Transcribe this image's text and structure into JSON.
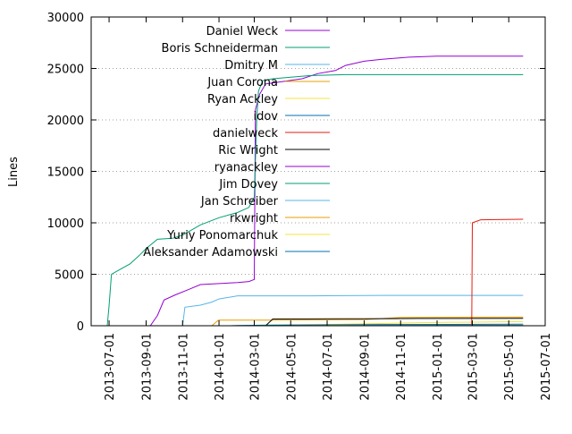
{
  "chart_data": {
    "type": "line",
    "title": "",
    "xlabel": "",
    "ylabel": "Lines",
    "ylim": [
      0,
      30000
    ],
    "xlim": [
      "2013-06-01",
      "2015-07-01"
    ],
    "y_ticks": [
      0,
      5000,
      10000,
      15000,
      20000,
      25000,
      30000
    ],
    "y_tick_labels": [
      "0",
      "5000",
      "10000",
      "15000",
      "20000",
      "25000",
      "30000"
    ],
    "x_ticks": [
      "2013-07-01",
      "2013-09-01",
      "2013-11-01",
      "2014-01-01",
      "2014-03-01",
      "2014-05-01",
      "2014-07-01",
      "2014-09-01",
      "2014-11-01",
      "2015-01-01",
      "2015-03-01",
      "2015-05-01",
      "2015-07-01"
    ],
    "grid": "horizontal dotted",
    "legend_position": "top-right",
    "series": [
      {
        "name": "Daniel Weck",
        "color": "#9400d3",
        "x": [
          "2013-08-25",
          "2013-09-08",
          "2013-09-20",
          "2013-10-01",
          "2013-10-20",
          "2013-11-10",
          "2013-12-01",
          "2014-01-01",
          "2014-02-01",
          "2014-02-20",
          "2014-03-01",
          "2014-03-03",
          "2014-03-10",
          "2014-03-20",
          "2014-04-15",
          "2014-05-20",
          "2014-06-15",
          "2014-07-15",
          "2014-08-01",
          "2014-09-01",
          "2014-10-01",
          "2014-11-15",
          "2015-01-01",
          "2015-05-25"
        ],
        "values": [
          0,
          0,
          1000,
          2500,
          3000,
          3500,
          4000,
          4100,
          4200,
          4300,
          4500,
          21000,
          22500,
          23500,
          23700,
          24000,
          24500,
          24800,
          25300,
          25700,
          25900,
          26100,
          26200,
          26200
        ]
      },
      {
        "name": "Boris Schneiderman",
        "color": "#009e73",
        "x": [
          "2013-06-01",
          "2013-06-28",
          "2013-07-01",
          "2013-07-05",
          "2013-07-20",
          "2013-08-05",
          "2013-08-20",
          "2013-09-01",
          "2013-09-20",
          "2013-10-15",
          "2013-11-01",
          "2013-12-01",
          "2014-01-01",
          "2014-02-01",
          "2014-02-20",
          "2014-03-01",
          "2014-03-05",
          "2014-03-08",
          "2014-03-15",
          "2014-04-01",
          "2014-06-01",
          "2014-08-01",
          "2015-05-25"
        ],
        "values": [
          0,
          0,
          2000,
          5000,
          5500,
          6000,
          6800,
          7500,
          8400,
          8500,
          8800,
          9800,
          10500,
          11000,
          11500,
          12500,
          20000,
          22800,
          23800,
          24000,
          24300,
          24400,
          24400
        ]
      },
      {
        "name": "Dmitry M",
        "color": "#56b4e9",
        "x": [
          "2013-10-15",
          "2013-11-01",
          "2013-11-05",
          "2013-12-01",
          "2013-12-20",
          "2014-01-01",
          "2014-02-01",
          "2014-06-01",
          "2014-10-01",
          "2015-05-25"
        ],
        "values": [
          0,
          0,
          1800,
          2000,
          2300,
          2600,
          2900,
          2900,
          2950,
          2950
        ]
      },
      {
        "name": "Juan Corona",
        "color": "#e69f00",
        "x": [
          "2013-12-20",
          "2013-12-31",
          "2014-04-01",
          "2014-09-01",
          "2014-11-01",
          "2015-05-25"
        ],
        "values": [
          0,
          550,
          550,
          600,
          800,
          850
        ]
      },
      {
        "name": "Ryan Ackley",
        "color": "#f0e442",
        "x": [
          "2014-04-10",
          "2014-04-20",
          "2014-08-01",
          "2014-12-01",
          "2015-05-25"
        ],
        "values": [
          0,
          60,
          150,
          300,
          400
        ]
      },
      {
        "name": "idov",
        "color": "#0072b2",
        "x": [
          "2014-01-20",
          "2014-02-01",
          "2014-04-01",
          "2014-10-01",
          "2015-05-25"
        ],
        "values": [
          0,
          20,
          60,
          120,
          150
        ]
      },
      {
        "name": "danielweck",
        "color": "#e51e10",
        "x": [
          "2013-06-01",
          "2015-02-28",
          "2015-03-01",
          "2015-03-15",
          "2015-05-25"
        ],
        "values": [
          0,
          0,
          10000,
          10300,
          10350
        ]
      },
      {
        "name": "Ric Wright",
        "color": "#000000",
        "x": [
          "2014-03-20",
          "2014-04-01",
          "2014-09-01",
          "2014-12-01",
          "2015-05-25"
        ],
        "values": [
          0,
          650,
          680,
          700,
          720
        ]
      },
      {
        "name": "ryanackley",
        "color": "#9400d3",
        "x": [
          "2014-04-20",
          "2014-05-01",
          "2015-05-25"
        ],
        "values": [
          0,
          30,
          30
        ]
      },
      {
        "name": "Jim Dovey",
        "color": "#009e73",
        "x": [
          "2014-03-01",
          "2014-03-10",
          "2015-05-25"
        ],
        "values": [
          0,
          20,
          20
        ]
      },
      {
        "name": "Jan Schreiber",
        "color": "#56b4e9",
        "x": [
          "2014-06-01",
          "2014-06-15",
          "2015-05-25"
        ],
        "values": [
          0,
          10,
          10
        ]
      },
      {
        "name": "rkwright",
        "color": "#e69f00",
        "x": [
          "2014-05-01",
          "2014-05-10",
          "2015-05-25"
        ],
        "values": [
          0,
          5,
          5
        ]
      },
      {
        "name": "Yuriy Ponomarchuk",
        "color": "#f0e442",
        "x": [
          "2014-07-01",
          "2014-07-10",
          "2015-05-25"
        ],
        "values": [
          0,
          5,
          5
        ]
      },
      {
        "name": "Aleksander Adamowski",
        "color": "#0072b2",
        "x": [
          "2014-08-01",
          "2014-08-10",
          "2015-05-25"
        ],
        "values": [
          0,
          5,
          5
        ]
      }
    ]
  }
}
